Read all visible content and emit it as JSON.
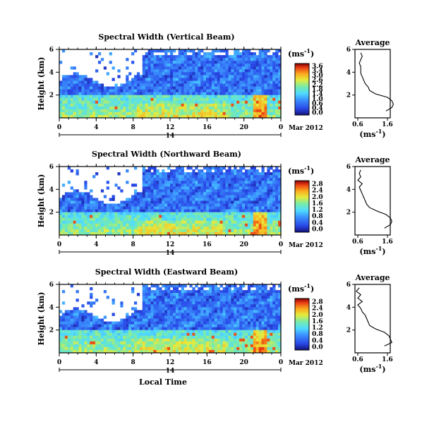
{
  "chart_data": [
    {
      "type": "heatmap",
      "title": "Spectral Width (Vertical Beam)",
      "ylabel": "Height (km)",
      "xticks": [
        "0",
        "4",
        "8",
        "12",
        "16",
        "20",
        "0"
      ],
      "yticks": [
        "2",
        "4",
        "6"
      ],
      "date_tick": "14",
      "date_label": "Mar 2012",
      "colorbar": {
        "unit": "(ms",
        "unit_exp": "-1",
        "unit_close": ")",
        "ticks": [
          "3.6",
          "3.4",
          "3.0",
          "2.6",
          "2.2",
          "1.8",
          "1.4",
          "1.0",
          "0.6",
          "0.4",
          "0.0"
        ],
        "range": [
          0,
          3.6
        ]
      },
      "average": {
        "title": "Average",
        "xticks": [
          "0.6",
          "1.6"
        ],
        "yticks": [
          "2",
          "4",
          "6"
        ],
        "xlabel": "(ms",
        "xlabel_exp": "-1",
        "xlabel_close": ")",
        "height_km": [
          0.6,
          0.9,
          1.2,
          1.5,
          1.8,
          2.1,
          2.4,
          2.7,
          3.0,
          3.3,
          3.6,
          3.9,
          4.2,
          4.5,
          4.8,
          5.1,
          5.4,
          5.7
        ],
        "width": [
          1.55,
          1.75,
          1.8,
          1.75,
          1.6,
          1.2,
          1.0,
          0.95,
          0.85,
          0.8,
          0.75,
          0.7,
          0.7,
          0.7,
          0.65,
          0.7,
          0.75,
          0.7
        ]
      }
    },
    {
      "type": "heatmap",
      "title": "Spectral Width (Northward Beam)",
      "ylabel": "Height (km)",
      "xticks": [
        "0",
        "4",
        "8",
        "12",
        "16",
        "20",
        "0"
      ],
      "yticks": [
        "2",
        "4",
        "6"
      ],
      "date_tick": "14",
      "date_label": "Mar 2012",
      "colorbar": {
        "unit": "(ms",
        "unit_exp": "-1",
        "unit_close": ")",
        "ticks": [
          "2.8",
          "2.4",
          "2.0",
          "1.6",
          "1.2",
          "0.8",
          "0.4",
          "0.0"
        ],
        "range": [
          0,
          2.8
        ]
      },
      "average": {
        "title": "Average",
        "xticks": [
          "0.6",
          "1.6"
        ],
        "yticks": [
          "2",
          "4",
          "6"
        ],
        "xlabel": "(ms",
        "xlabel_exp": "-1",
        "xlabel_close": ")",
        "height_km": [
          0.6,
          0.9,
          1.2,
          1.5,
          1.8,
          2.1,
          2.4,
          2.7,
          3.0,
          3.3,
          3.6,
          3.9,
          4.2,
          4.5,
          4.8,
          5.1,
          5.4,
          5.7
        ],
        "width": [
          1.5,
          1.7,
          1.75,
          1.7,
          1.55,
          1.25,
          1.0,
          0.9,
          0.85,
          0.8,
          0.75,
          0.7,
          0.65,
          0.75,
          0.6,
          0.7,
          0.65,
          0.7
        ]
      }
    },
    {
      "type": "heatmap",
      "title": "Spectral Width (Eastward Beam)",
      "ylabel": "Height (km)",
      "xlabel": "Local Time",
      "xticks": [
        "0",
        "4",
        "8",
        "12",
        "16",
        "20",
        "0"
      ],
      "yticks": [
        "2",
        "4",
        "6"
      ],
      "date_tick": "14",
      "date_label": "Mar 2012",
      "colorbar": {
        "unit": "(ms",
        "unit_exp": "-1",
        "unit_close": ")",
        "ticks": [
          "2.8",
          "2.4",
          "2.0",
          "1.6",
          "1.2",
          "0.8",
          "0.4",
          "0.0"
        ],
        "range": [
          0,
          2.8
        ]
      },
      "average": {
        "title": "Average",
        "xticks": [
          "0.6",
          "1.6"
        ],
        "yticks": [
          "2",
          "4",
          "6"
        ],
        "xlabel": "(ms",
        "xlabel_exp": "-1",
        "xlabel_close": ")",
        "height_km": [
          0.6,
          0.9,
          1.2,
          1.5,
          1.8,
          2.1,
          2.4,
          2.7,
          3.0,
          3.3,
          3.6,
          3.9,
          4.2,
          4.5,
          4.8,
          5.1,
          5.4,
          5.7
        ],
        "width": [
          1.5,
          1.75,
          1.7,
          1.65,
          1.5,
          1.2,
          1.0,
          0.95,
          0.9,
          0.85,
          0.75,
          0.7,
          0.6,
          0.75,
          0.6,
          0.7,
          0.55,
          0.65
        ]
      }
    }
  ]
}
